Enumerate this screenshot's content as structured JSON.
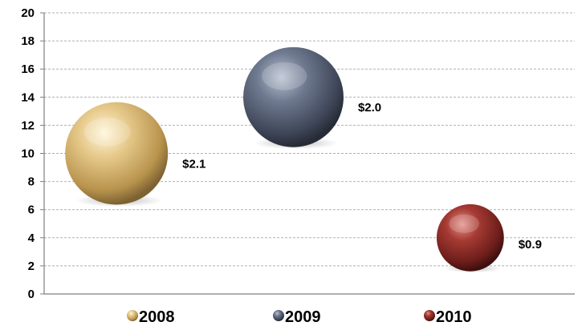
{
  "chart_data": {
    "type": "bubble",
    "title": "",
    "xlabel": "",
    "ylabel": "",
    "ylim": [
      0,
      20
    ],
    "y_ticks": [
      0,
      2,
      4,
      6,
      8,
      10,
      12,
      14,
      16,
      18,
      20
    ],
    "grid": true,
    "legend_position": "bottom",
    "series": [
      {
        "name": "2008",
        "x": 1,
        "y": 10,
        "size": 2.1,
        "label": "$2.1",
        "color": "#d9b870"
      },
      {
        "name": "2009",
        "x": 2,
        "y": 14,
        "size": 2.0,
        "label": "$2.0",
        "color": "#5a6478"
      },
      {
        "name": "2010",
        "x": 3,
        "y": 4,
        "size": 0.9,
        "label": "$0.9",
        "color": "#8e2a26"
      }
    ]
  }
}
